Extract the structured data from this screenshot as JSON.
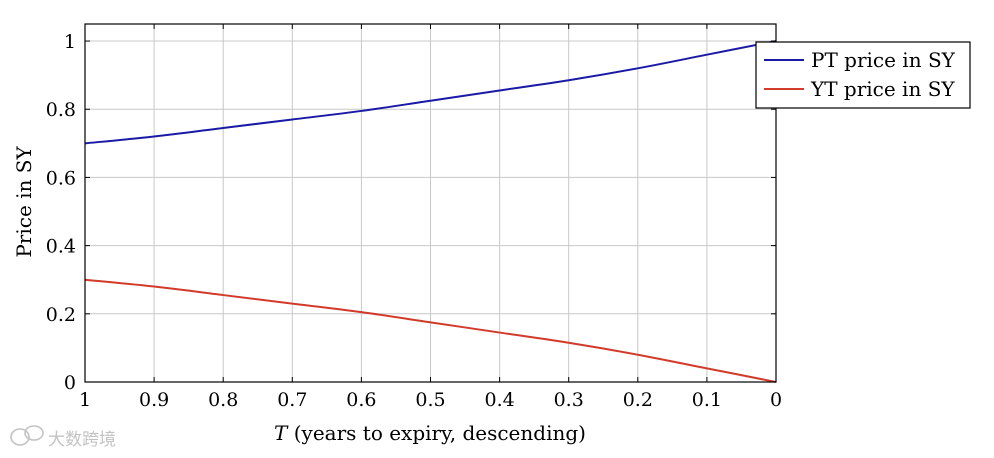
{
  "chart_data": {
    "type": "line",
    "title": "",
    "xlabel_italic": "T",
    "xlabel_rest": " (years to expiry, descending)",
    "ylabel": "Price in SY",
    "xlim": [
      1,
      0
    ],
    "ylim": [
      0,
      1.05
    ],
    "x_reversed": true,
    "grid": true,
    "legend_position": "top-right",
    "x_ticks": [
      1,
      0.9,
      0.8,
      0.7,
      0.6,
      0.5,
      0.4,
      0.3,
      0.2,
      0.1,
      0
    ],
    "x_tick_labels": [
      "1",
      "0.9",
      "0.8",
      "0.7",
      "0.6",
      "0.5",
      "0.4",
      "0.3",
      "0.2",
      "0.1",
      "0"
    ],
    "y_ticks": [
      0,
      0.2,
      0.4,
      0.6,
      0.8,
      1
    ],
    "y_tick_labels": [
      "0",
      "0.2",
      "0.4",
      "0.6",
      "0.8",
      "1"
    ],
    "x": [
      1,
      0.9,
      0.8,
      0.7,
      0.6,
      0.5,
      0.4,
      0.3,
      0.2,
      0.1,
      0
    ],
    "series": [
      {
        "name": "PT price in SY",
        "color": "#1a1aa6",
        "values": [
          0.7,
          0.72,
          0.745,
          0.77,
          0.795,
          0.825,
          0.855,
          0.885,
          0.92,
          0.96,
          1.0
        ]
      },
      {
        "name": "YT price in SY",
        "color": "#d23a2a",
        "values": [
          0.3,
          0.28,
          0.255,
          0.23,
          0.205,
          0.175,
          0.145,
          0.115,
          0.08,
          0.04,
          0.0
        ]
      }
    ]
  },
  "watermark": {
    "text": "大数跨境",
    "icon": "chat-bubbles-icon"
  }
}
